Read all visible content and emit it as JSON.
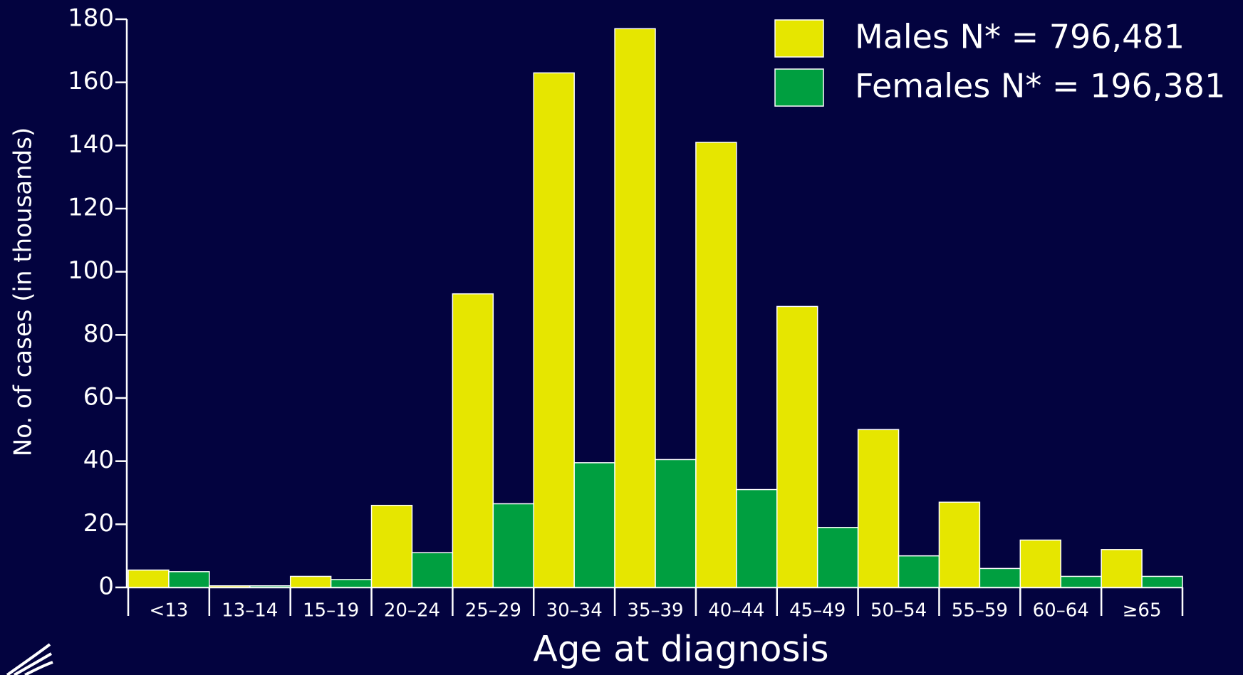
{
  "chart_data": {
    "type": "bar",
    "x_label": "Age at diagnosis",
    "y_label": "No. of cases (in thousands)",
    "categories": [
      "<13",
      "13–14",
      "15–19",
      "20–24",
      "25–29",
      "30–34",
      "35–39",
      "40–44",
      "45–49",
      "50–54",
      "55–59",
      "60–64",
      "≥65"
    ],
    "series": [
      {
        "name": "Males  N* = 796,481",
        "color": "#e6e600",
        "values": [
          5.5,
          0.5,
          3.5,
          26,
          93,
          163,
          177,
          141,
          89,
          50,
          27,
          15,
          12
        ]
      },
      {
        "name": "Females N* = 196,381",
        "color": "#009f40",
        "values": [
          5,
          0.5,
          2.5,
          11,
          26.5,
          39.5,
          40.5,
          31,
          19,
          10,
          6,
          3.5,
          3.5
        ]
      }
    ],
    "ylim": [
      0,
      180
    ],
    "yticks": [
      0,
      20,
      40,
      60,
      80,
      100,
      120,
      140,
      160,
      180
    ],
    "legend": "upper right"
  }
}
